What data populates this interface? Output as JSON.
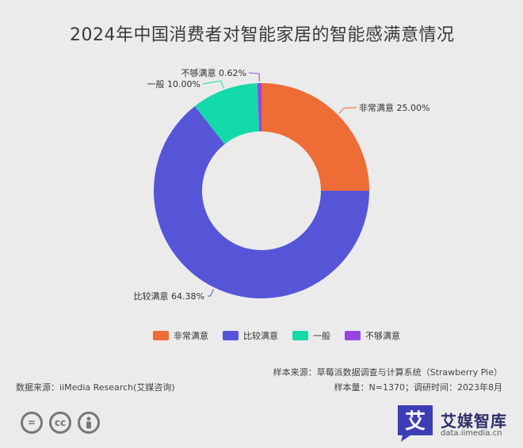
{
  "title": "2024年中国消费者对智能家居的智能感满意情况",
  "chart_data": {
    "type": "pie",
    "donut": true,
    "title": "2024年中国消费者对智能家居的智能感满意情况",
    "slices": [
      {
        "name": "非常满意",
        "value": 25.0,
        "label": "非常满意 25.00%",
        "color": "#ee6c35"
      },
      {
        "name": "比较满意",
        "value": 64.38,
        "label": "比较满意 64.38%",
        "color": "#5655d8"
      },
      {
        "name": "一般",
        "value": 10.0,
        "label": "一般 10.00%",
        "color": "#14d9a8"
      },
      {
        "name": "不够满意",
        "value": 0.62,
        "label": "不够满意 0.62%",
        "color": "#9646e0"
      }
    ],
    "legend_position": "bottom"
  },
  "footer": {
    "sample_source": "样本来源：草莓派数据调查与计算系统（Strawberry Pie）",
    "sample_size": "样本量：N=1370；调研时间：2023年8月",
    "data_source": "数据来源：iiMedia Research(艾媒咨询)"
  },
  "brand": {
    "logo_char": "艾",
    "name": "艾媒智库",
    "url": "data.iimedia.cn"
  },
  "icons": [
    "cc-equal-icon",
    "cc-icon",
    "cc-by-person-icon"
  ]
}
